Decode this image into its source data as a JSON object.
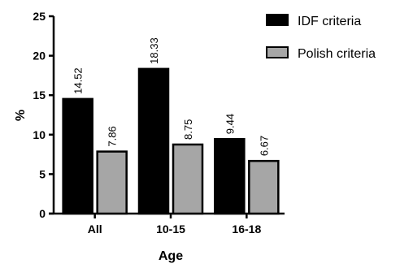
{
  "chart_data": {
    "type": "bar",
    "categories": [
      "All",
      "10-15",
      "16-18"
    ],
    "series": [
      {
        "name": "IDF criteria",
        "values": [
          14.52,
          18.33,
          9.44
        ],
        "labels": [
          "14.52",
          "18.33",
          "9.44"
        ],
        "color": "#000000"
      },
      {
        "name": "Polish criteria",
        "values": [
          7.86,
          8.75,
          6.67
        ],
        "labels": [
          "7.86",
          "8.75",
          "6.67"
        ],
        "color": "#a6a6a6"
      }
    ],
    "xlabel": "Age",
    "ylabel": "%",
    "ylim": [
      0,
      25
    ],
    "yticks": [
      "0",
      "5",
      "10",
      "15",
      "20",
      "25"
    ],
    "grid": false,
    "legend_position": "top-right"
  }
}
